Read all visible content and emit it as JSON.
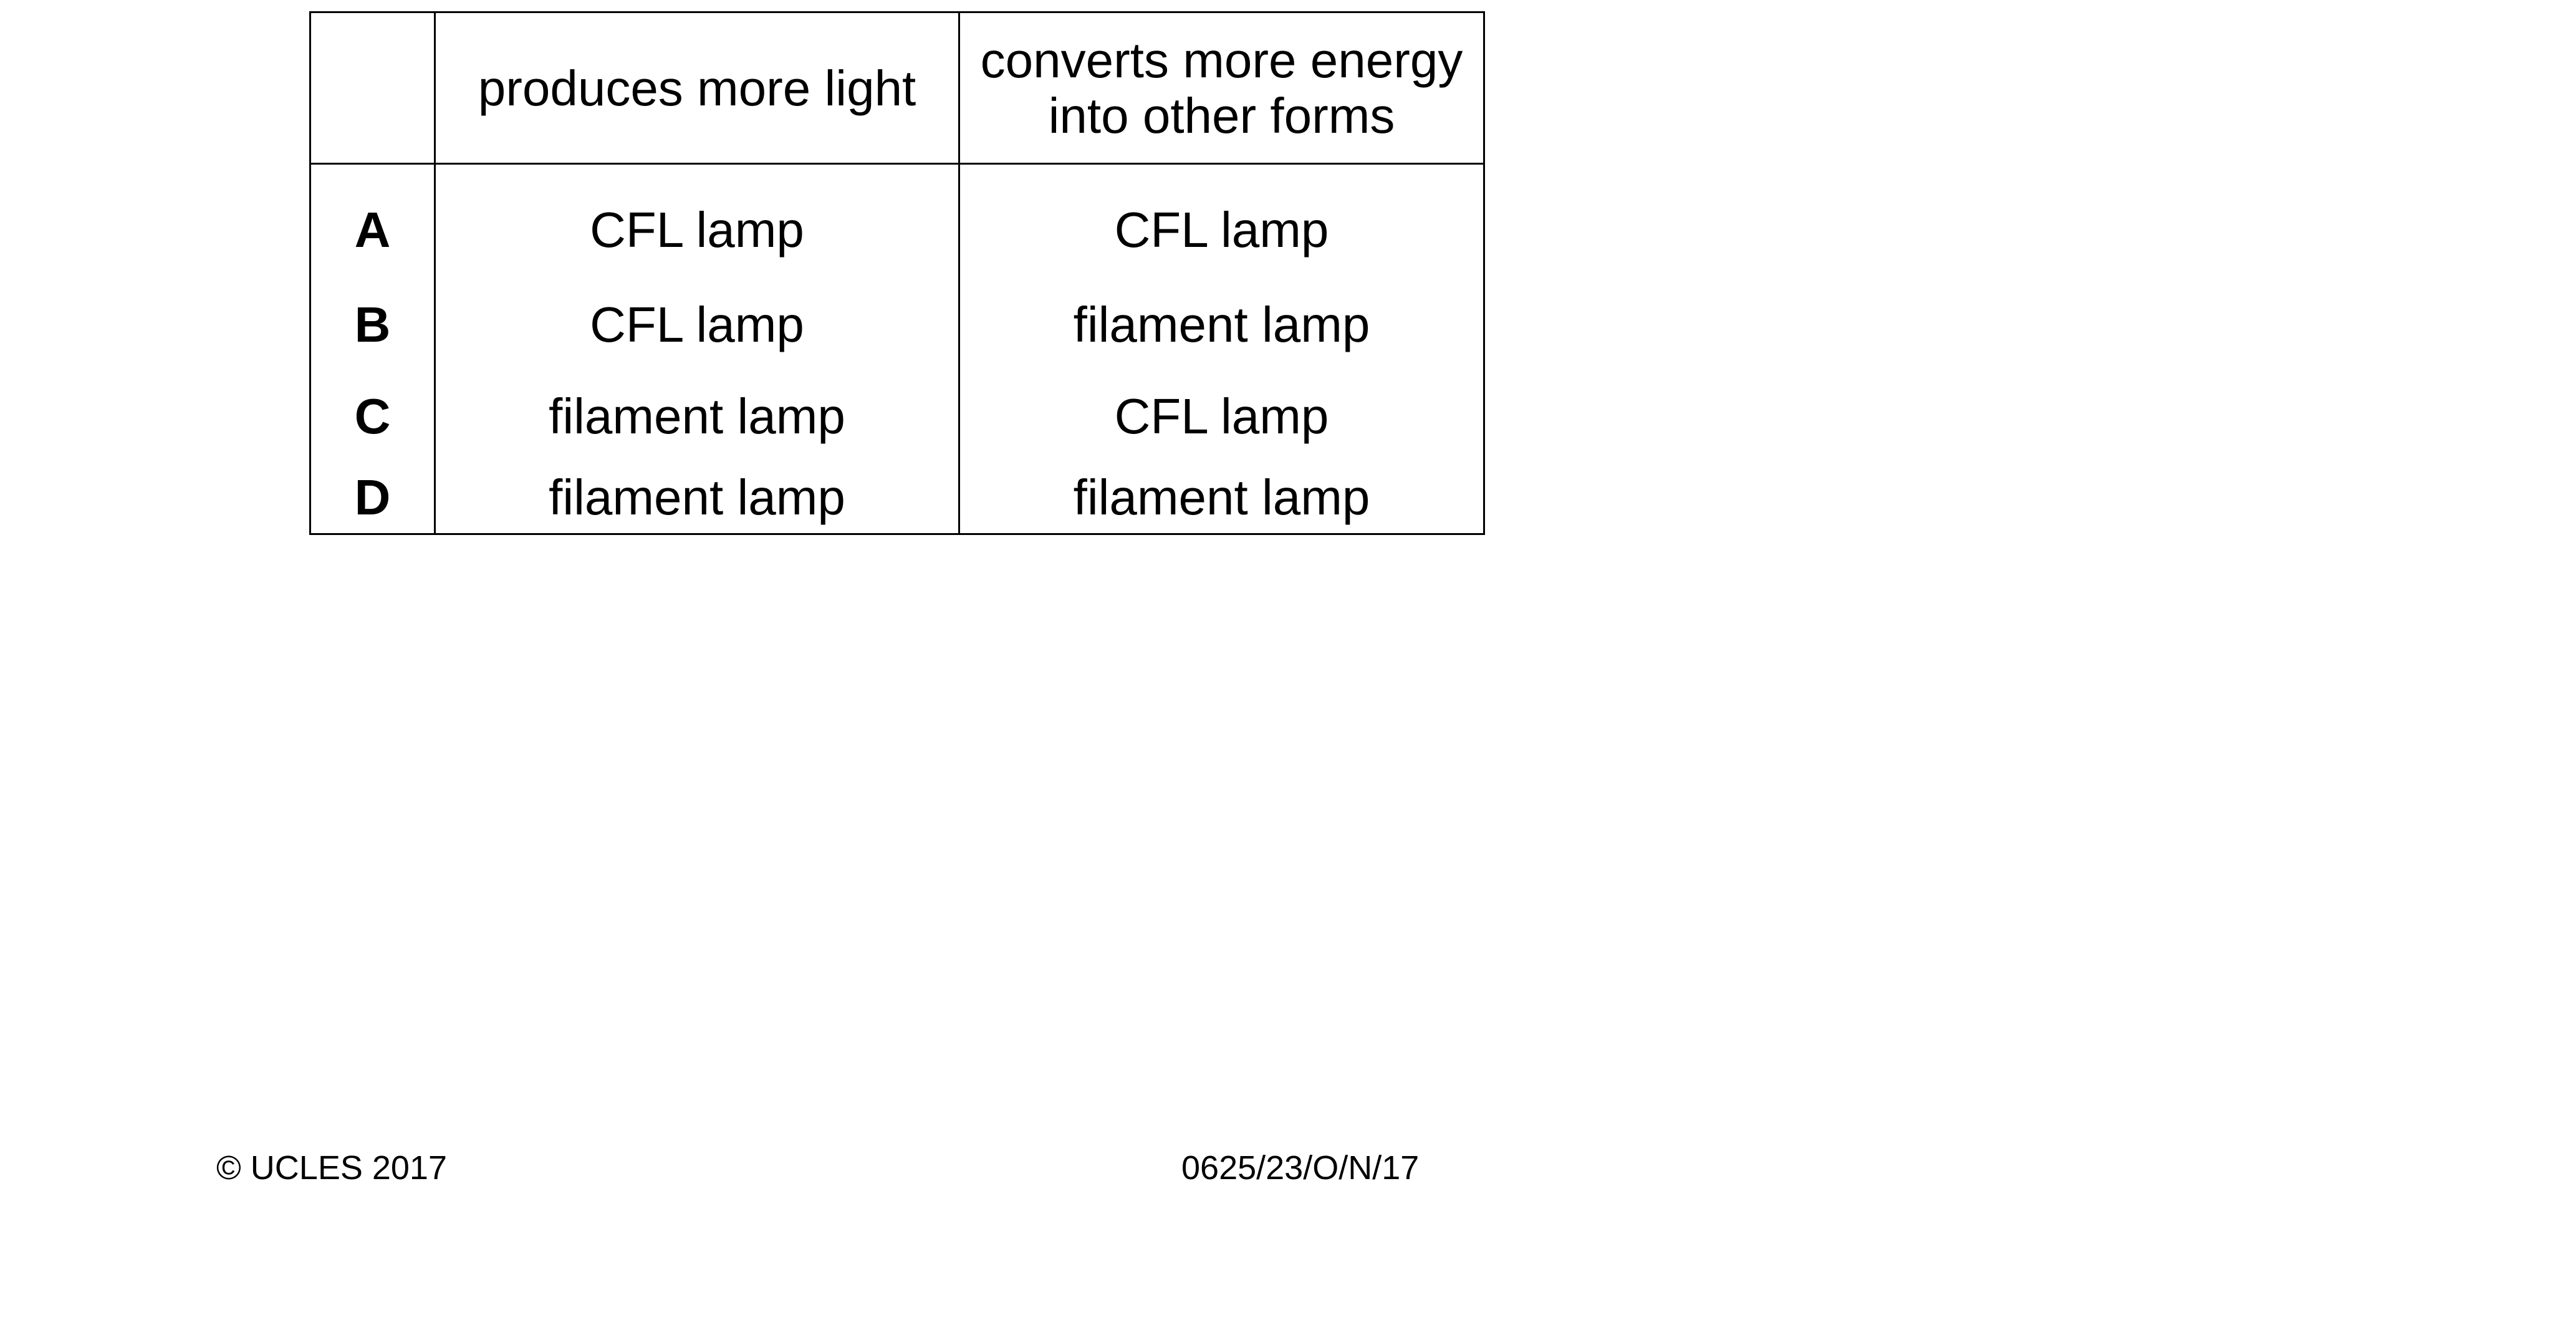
{
  "table": {
    "headers": [
      "",
      "produces more light",
      "converts more energy into other forms"
    ],
    "rows": [
      {
        "letter": "A",
        "light": "CFL lamp",
        "energy": "CFL lamp"
      },
      {
        "letter": "B",
        "light": "CFL lamp",
        "energy": "filament lamp"
      },
      {
        "letter": "C",
        "light": "filament lamp",
        "energy": "CFL lamp"
      },
      {
        "letter": "D",
        "light": "filament lamp",
        "energy": "filament lamp"
      }
    ]
  },
  "footer": {
    "copyright": "© UCLES 2017",
    "code": "0625/23/O/N/17"
  }
}
